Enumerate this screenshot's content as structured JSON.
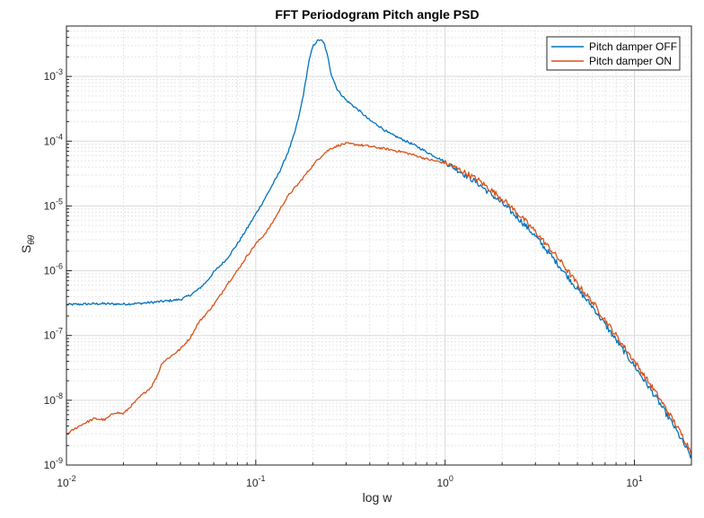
{
  "chart_data": {
    "type": "line",
    "title": "FFT Periodogram Pitch angle PSD",
    "xlabel": "log w",
    "ylabel": {
      "base": "S",
      "subscript": "θθ"
    },
    "xscale": "log",
    "yscale": "log",
    "xlim": [
      0.01,
      20
    ],
    "ylim": [
      1e-09,
      0.006
    ],
    "grid": true,
    "minor_grid": true,
    "legend_position": "top-right",
    "x_ticks": [
      {
        "value": 0.01,
        "base": "10",
        "exp": "-2"
      },
      {
        "value": 0.1,
        "base": "10",
        "exp": "-1"
      },
      {
        "value": 1,
        "base": "10",
        "exp": "0"
      },
      {
        "value": 10,
        "base": "10",
        "exp": "1"
      }
    ],
    "y_ticks": [
      {
        "value": 1e-09,
        "base": "10",
        "exp": "-9"
      },
      {
        "value": 1e-08,
        "base": "10",
        "exp": "-8"
      },
      {
        "value": 1e-07,
        "base": "10",
        "exp": "-7"
      },
      {
        "value": 1e-06,
        "base": "10",
        "exp": "-6"
      },
      {
        "value": 1e-05,
        "base": "10",
        "exp": "-5"
      },
      {
        "value": 0.0001,
        "base": "10",
        "exp": "-4"
      },
      {
        "value": 0.001,
        "base": "10",
        "exp": "-3"
      }
    ],
    "series": [
      {
        "name": "Pitch damper OFF",
        "color": "#0072BD",
        "points": [
          [
            0.01,
            3e-07
          ],
          [
            0.015,
            3.1e-07
          ],
          [
            0.02,
            3.05e-07
          ],
          [
            0.025,
            3.15e-07
          ],
          [
            0.03,
            3.3e-07
          ],
          [
            0.035,
            3.45e-07
          ],
          [
            0.04,
            3.6e-07
          ],
          [
            0.045,
            4.2e-07
          ],
          [
            0.05,
            5.2e-07
          ],
          [
            0.055,
            6.8e-07
          ],
          [
            0.06,
            9.5e-07
          ],
          [
            0.07,
            1.5e-06
          ],
          [
            0.08,
            2.6e-06
          ],
          [
            0.09,
            4.5e-06
          ],
          [
            0.1,
            7.5e-06
          ],
          [
            0.11,
            1.2e-05
          ],
          [
            0.12,
            1.9e-05
          ],
          [
            0.13,
            2.9e-05
          ],
          [
            0.14,
            4.6e-05
          ],
          [
            0.15,
            7.5e-05
          ],
          [
            0.16,
            0.00013
          ],
          [
            0.17,
            0.00026
          ],
          [
            0.18,
            0.0006
          ],
          [
            0.19,
            0.0016
          ],
          [
            0.2,
            0.0029
          ],
          [
            0.21,
            0.0035
          ],
          [
            0.22,
            0.0037
          ],
          [
            0.23,
            0.0032
          ],
          [
            0.24,
            0.002
          ],
          [
            0.25,
            0.0011
          ],
          [
            0.27,
            0.00062
          ],
          [
            0.3,
            0.00043
          ],
          [
            0.35,
            0.0003
          ],
          [
            0.4,
            0.00021
          ],
          [
            0.45,
            0.00017
          ],
          [
            0.5,
            0.000135
          ],
          [
            0.6,
            0.000105
          ],
          [
            0.7,
            8.5e-05
          ],
          [
            0.8,
            6.8e-05
          ],
          [
            1.0,
            4.8e-05
          ],
          [
            1.2,
            3.4e-05
          ],
          [
            1.5,
            2.2e-05
          ],
          [
            2.0,
            1.1e-05
          ],
          [
            2.5,
            6e-06
          ],
          [
            3.0,
            3.4e-06
          ],
          [
            4.0,
            1.2e-06
          ],
          [
            5.0,
            5.2e-07
          ],
          [
            6.0,
            2.8e-07
          ],
          [
            8.0,
            8.5e-08
          ],
          [
            10.0,
            3.4e-08
          ],
          [
            13.0,
            1.1e-08
          ],
          [
            16.0,
            4.2e-09
          ],
          [
            20.0,
            1.3e-09
          ]
        ]
      },
      {
        "name": "Pitch damper ON",
        "color": "#D95319",
        "points": [
          [
            0.01,
            3e-09
          ],
          [
            0.012,
            4.2e-09
          ],
          [
            0.014,
            5.2e-09
          ],
          [
            0.016,
            5e-09
          ],
          [
            0.018,
            6.5e-09
          ],
          [
            0.02,
            6.2e-09
          ],
          [
            0.022,
            8.2e-09
          ],
          [
            0.025,
            1.2e-08
          ],
          [
            0.028,
            1.6e-08
          ],
          [
            0.03,
            2.3e-08
          ],
          [
            0.032,
            3.8e-08
          ],
          [
            0.035,
            4.6e-08
          ],
          [
            0.04,
            6.2e-08
          ],
          [
            0.045,
            9.2e-08
          ],
          [
            0.05,
            1.6e-07
          ],
          [
            0.055,
            2.2e-07
          ],
          [
            0.06,
            3e-07
          ],
          [
            0.065,
            4.2e-07
          ],
          [
            0.07,
            6e-07
          ],
          [
            0.08,
            1e-06
          ],
          [
            0.09,
            1.7e-06
          ],
          [
            0.1,
            2.6e-06
          ],
          [
            0.11,
            3.5e-06
          ],
          [
            0.12,
            5e-06
          ],
          [
            0.13,
            7.5e-06
          ],
          [
            0.14,
            1.1e-05
          ],
          [
            0.15,
            1.5e-05
          ],
          [
            0.17,
            2.3e-05
          ],
          [
            0.19,
            3.5e-05
          ],
          [
            0.21,
            5e-05
          ],
          [
            0.23,
            6.5e-05
          ],
          [
            0.25,
            7.8e-05
          ],
          [
            0.28,
            8.8e-05
          ],
          [
            0.3,
            9.2e-05
          ],
          [
            0.35,
            8.8e-05
          ],
          [
            0.4,
            8.3e-05
          ],
          [
            0.5,
            7.5e-05
          ],
          [
            0.6,
            6.8e-05
          ],
          [
            0.7,
            6e-05
          ],
          [
            0.8,
            5.3e-05
          ],
          [
            1.0,
            4.6e-05
          ],
          [
            1.2,
            3.6e-05
          ],
          [
            1.5,
            2.5e-05
          ],
          [
            2.0,
            1.3e-05
          ],
          [
            2.5,
            7e-06
          ],
          [
            3.0,
            4e-06
          ],
          [
            4.0,
            1.5e-06
          ],
          [
            5.0,
            6.2e-07
          ],
          [
            6.0,
            3.3e-07
          ],
          [
            8.0,
            1e-07
          ],
          [
            10.0,
            4e-08
          ],
          [
            13.0,
            1.3e-08
          ],
          [
            16.0,
            5e-09
          ],
          [
            20.0,
            1.6e-09
          ]
        ]
      }
    ]
  }
}
